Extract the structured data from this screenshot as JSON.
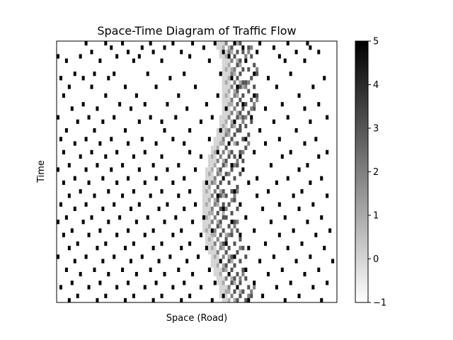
{
  "chart_data": {
    "type": "heatmap",
    "title": "Space-Time Diagram of Traffic Flow",
    "xlabel": "Space (Road)",
    "ylabel": "Time",
    "x_ticks": "none",
    "y_ticks": "none",
    "grid": false,
    "colormap": "gray_r",
    "vmin": -1,
    "vmax": 5,
    "colorbar": {
      "position": "right",
      "ticks": [
        5,
        4,
        3,
        2,
        1,
        0,
        -1
      ],
      "tick_labels": [
        "5",
        "4",
        "3",
        "2",
        "1",
        "0",
        "−1"
      ]
    },
    "grid_size": {
      "columns": 100,
      "rows": 60
    },
    "empty_value": -1,
    "vehicle_value": 5,
    "wave_values": [
      0,
      1,
      2,
      3
    ],
    "vehicle_cells": [
      [
        10,
        0
      ],
      [
        17,
        0
      ],
      [
        23,
        0
      ],
      [
        33,
        0
      ],
      [
        41,
        0
      ],
      [
        48,
        0
      ],
      [
        56,
        0
      ],
      [
        63,
        0
      ],
      [
        72,
        0
      ],
      [
        82,
        0
      ],
      [
        89,
        0
      ],
      [
        19,
        1
      ],
      [
        30,
        1
      ],
      [
        38,
        1
      ],
      [
        52,
        1
      ],
      [
        66,
        1
      ],
      [
        77,
        1
      ],
      [
        90,
        1
      ],
      [
        12,
        2
      ],
      [
        25,
        2
      ],
      [
        34,
        2
      ],
      [
        44,
        2
      ],
      [
        59,
        2
      ],
      [
        71,
        2
      ],
      [
        85,
        2
      ],
      [
        93,
        2
      ],
      [
        0,
        3
      ],
      [
        8,
        3
      ],
      [
        21,
        3
      ],
      [
        29,
        3
      ],
      [
        47,
        3
      ],
      [
        61,
        3
      ],
      [
        79,
        3
      ],
      [
        3,
        4
      ],
      [
        15,
        4
      ],
      [
        27,
        4
      ],
      [
        37,
        4
      ],
      [
        54,
        4
      ],
      [
        67,
        4
      ],
      [
        81,
        4
      ],
      [
        88,
        4
      ],
      [
        6,
        7
      ],
      [
        13,
        7
      ],
      [
        20,
        7
      ],
      [
        32,
        7
      ],
      [
        45,
        7
      ],
      [
        58,
        7
      ],
      [
        70,
        7
      ],
      [
        83,
        7
      ],
      [
        1,
        8
      ],
      [
        9,
        8
      ],
      [
        18,
        8
      ],
      [
        40,
        8
      ],
      [
        62,
        8
      ],
      [
        75,
        8
      ],
      [
        95,
        8
      ],
      [
        4,
        10
      ],
      [
        12,
        10
      ],
      [
        24,
        10
      ],
      [
        35,
        10
      ],
      [
        49,
        10
      ],
      [
        64,
        10
      ],
      [
        78,
        10
      ],
      [
        91,
        10
      ],
      [
        2,
        12
      ],
      [
        17,
        12
      ],
      [
        28,
        12
      ],
      [
        43,
        12
      ],
      [
        57,
        12
      ],
      [
        70,
        12
      ],
      [
        86,
        12
      ],
      [
        9,
        14
      ],
      [
        22,
        14
      ],
      [
        31,
        14
      ],
      [
        39,
        14
      ],
      [
        53,
        14
      ],
      [
        66,
        14
      ],
      [
        80,
        14
      ],
      [
        93,
        14
      ],
      [
        5,
        15
      ],
      [
        14,
        15
      ],
      [
        26,
        15
      ],
      [
        46,
        15
      ],
      [
        60,
        15
      ],
      [
        74,
        15
      ],
      [
        88,
        15
      ],
      [
        0,
        17
      ],
      [
        11,
        17
      ],
      [
        20,
        17
      ],
      [
        33,
        17
      ],
      [
        42,
        17
      ],
      [
        55,
        17
      ],
      [
        69,
        17
      ],
      [
        82,
        17
      ],
      [
        96,
        17
      ],
      [
        7,
        18
      ],
      [
        16,
        18
      ],
      [
        29,
        18
      ],
      [
        37,
        18
      ],
      [
        51,
        18
      ],
      [
        63,
        18
      ],
      [
        77,
        18
      ],
      [
        90,
        18
      ],
      [
        3,
        20
      ],
      [
        13,
        20
      ],
      [
        24,
        20
      ],
      [
        38,
        20
      ],
      [
        47,
        20
      ],
      [
        58,
        20
      ],
      [
        72,
        20
      ],
      [
        85,
        20
      ],
      [
        1,
        22
      ],
      [
        10,
        22
      ],
      [
        19,
        22
      ],
      [
        30,
        22
      ],
      [
        41,
        22
      ],
      [
        54,
        22
      ],
      [
        67,
        22
      ],
      [
        79,
        22
      ],
      [
        92,
        22
      ],
      [
        6,
        23
      ],
      [
        15,
        23
      ],
      [
        25,
        23
      ],
      [
        35,
        23
      ],
      [
        45,
        23
      ],
      [
        61,
        23
      ],
      [
        74,
        23
      ],
      [
        88,
        23
      ],
      [
        2,
        25
      ],
      [
        12,
        25
      ],
      [
        21,
        25
      ],
      [
        31,
        25
      ],
      [
        47,
        25
      ],
      [
        57,
        25
      ],
      [
        70,
        25
      ],
      [
        83,
        25
      ],
      [
        96,
        25
      ],
      [
        8,
        26
      ],
      [
        17,
        26
      ],
      [
        27,
        26
      ],
      [
        37,
        26
      ],
      [
        51,
        26
      ],
      [
        65,
        26
      ],
      [
        80,
        26
      ],
      [
        93,
        26
      ],
      [
        4,
        28
      ],
      [
        14,
        28
      ],
      [
        23,
        28
      ],
      [
        34,
        28
      ],
      [
        43,
        28
      ],
      [
        62,
        28
      ],
      [
        76,
        28
      ],
      [
        89,
        28
      ],
      [
        0,
        29
      ],
      [
        10,
        29
      ],
      [
        19,
        29
      ],
      [
        29,
        29
      ],
      [
        39,
        29
      ],
      [
        49,
        29
      ],
      [
        66,
        29
      ],
      [
        86,
        29
      ],
      [
        6,
        31
      ],
      [
        16,
        31
      ],
      [
        25,
        31
      ],
      [
        35,
        31
      ],
      [
        45,
        31
      ],
      [
        59,
        31
      ],
      [
        71,
        31
      ],
      [
        82,
        31
      ],
      [
        94,
        31
      ],
      [
        2,
        32
      ],
      [
        11,
        32
      ],
      [
        21,
        32
      ],
      [
        31,
        32
      ],
      [
        41,
        32
      ],
      [
        53,
        32
      ],
      [
        68,
        32
      ],
      [
        78,
        32
      ],
      [
        90,
        32
      ],
      [
        8,
        34
      ],
      [
        18,
        34
      ],
      [
        27,
        34
      ],
      [
        37,
        34
      ],
      [
        47,
        34
      ],
      [
        63,
        34
      ],
      [
        75,
        34
      ],
      [
        87,
        34
      ],
      [
        4,
        35
      ],
      [
        13,
        35
      ],
      [
        23,
        35
      ],
      [
        33,
        35
      ],
      [
        43,
        35
      ],
      [
        57,
        35
      ],
      [
        71,
        35
      ],
      [
        84,
        35
      ],
      [
        96,
        35
      ],
      [
        1,
        37
      ],
      [
        10,
        37
      ],
      [
        20,
        37
      ],
      [
        29,
        37
      ],
      [
        39,
        37
      ],
      [
        49,
        37
      ],
      [
        65,
        37
      ],
      [
        79,
        37
      ],
      [
        91,
        37
      ],
      [
        6,
        38
      ],
      [
        16,
        38
      ],
      [
        26,
        38
      ],
      [
        36,
        38
      ],
      [
        45,
        38
      ],
      [
        59,
        38
      ],
      [
        73,
        38
      ],
      [
        86,
        38
      ],
      [
        3,
        40
      ],
      [
        12,
        40
      ],
      [
        22,
        40
      ],
      [
        32,
        40
      ],
      [
        42,
        40
      ],
      [
        52,
        40
      ],
      [
        67,
        40
      ],
      [
        81,
        40
      ],
      [
        94,
        40
      ],
      [
        0,
        41
      ],
      [
        9,
        41
      ],
      [
        18,
        41
      ],
      [
        28,
        41
      ],
      [
        38,
        41
      ],
      [
        48,
        41
      ],
      [
        62,
        41
      ],
      [
        76,
        41
      ],
      [
        89,
        41
      ],
      [
        5,
        43
      ],
      [
        15,
        43
      ],
      [
        25,
        43
      ],
      [
        34,
        43
      ],
      [
        44,
        43
      ],
      [
        55,
        43
      ],
      [
        70,
        43
      ],
      [
        84,
        43
      ],
      [
        97,
        43
      ],
      [
        2,
        44
      ],
      [
        11,
        44
      ],
      [
        21,
        44
      ],
      [
        31,
        44
      ],
      [
        41,
        44
      ],
      [
        51,
        44
      ],
      [
        65,
        44
      ],
      [
        79,
        44
      ],
      [
        92,
        44
      ],
      [
        7,
        46
      ],
      [
        17,
        46
      ],
      [
        27,
        46
      ],
      [
        37,
        46
      ],
      [
        47,
        46
      ],
      [
        60,
        46
      ],
      [
        74,
        46
      ],
      [
        87,
        46
      ],
      [
        4,
        47
      ],
      [
        14,
        47
      ],
      [
        24,
        47
      ],
      [
        34,
        47
      ],
      [
        44,
        47
      ],
      [
        53,
        47
      ],
      [
        68,
        47
      ],
      [
        82,
        47
      ],
      [
        95,
        47
      ],
      [
        0,
        49
      ],
      [
        10,
        49
      ],
      [
        20,
        49
      ],
      [
        30,
        49
      ],
      [
        40,
        49
      ],
      [
        50,
        49
      ],
      [
        63,
        49
      ],
      [
        77,
        49
      ],
      [
        90,
        49
      ],
      [
        6,
        50
      ],
      [
        16,
        50
      ],
      [
        26,
        50
      ],
      [
        36,
        50
      ],
      [
        46,
        50
      ],
      [
        58,
        50
      ],
      [
        72,
        50
      ],
      [
        85,
        50
      ],
      [
        98,
        50
      ],
      [
        3,
        52
      ],
      [
        13,
        52
      ],
      [
        23,
        52
      ],
      [
        33,
        52
      ],
      [
        43,
        52
      ],
      [
        54,
        52
      ],
      [
        67,
        52
      ],
      [
        80,
        52
      ],
      [
        93,
        52
      ],
      [
        8,
        53
      ],
      [
        18,
        53
      ],
      [
        28,
        53
      ],
      [
        38,
        53
      ],
      [
        48,
        53
      ],
      [
        61,
        53
      ],
      [
        75,
        53
      ],
      [
        88,
        53
      ],
      [
        5,
        55
      ],
      [
        15,
        55
      ],
      [
        25,
        55
      ],
      [
        35,
        55
      ],
      [
        45,
        55
      ],
      [
        56,
        55
      ],
      [
        70,
        55
      ],
      [
        83,
        55
      ],
      [
        96,
        55
      ],
      [
        1,
        56
      ],
      [
        11,
        56
      ],
      [
        21,
        56
      ],
      [
        31,
        56
      ],
      [
        41,
        56
      ],
      [
        51,
        56
      ],
      [
        64,
        56
      ],
      [
        78,
        56
      ],
      [
        91,
        56
      ],
      [
        7,
        58
      ],
      [
        17,
        58
      ],
      [
        27,
        58
      ],
      [
        37,
        58
      ],
      [
        47,
        58
      ],
      [
        59,
        58
      ],
      [
        73,
        58
      ],
      [
        86,
        58
      ],
      [
        4,
        59
      ],
      [
        14,
        59
      ],
      [
        24,
        59
      ],
      [
        34,
        59
      ],
      [
        44,
        59
      ],
      [
        55,
        59
      ],
      [
        68,
        59
      ],
      [
        81,
        59
      ],
      [
        94,
        59
      ]
    ]
  }
}
